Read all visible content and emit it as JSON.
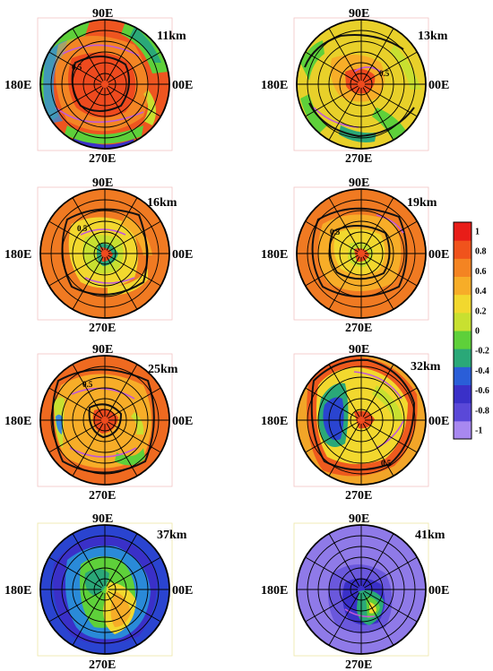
{
  "figure": {
    "panels": [
      {
        "altitude": "11km",
        "top": "90E",
        "bottom": "270E",
        "left": "180E",
        "right": "00E",
        "contour_label": "0.5",
        "background": "#ee5520",
        "frame": "pink"
      },
      {
        "altitude": "13km",
        "top": "90E",
        "bottom": "270E",
        "left": "180E",
        "right": "00E",
        "contour_label": "0.5",
        "background": "#e8d02a",
        "frame": "pink"
      },
      {
        "altitude": "16km",
        "top": "90E",
        "bottom": "270E",
        "left": "180E",
        "right": "00E",
        "contour_label": "0.5",
        "background": "#f07a22",
        "frame": "pink"
      },
      {
        "altitude": "19km",
        "top": "90E",
        "bottom": "270E",
        "left": "180E",
        "right": "00E",
        "contour_label": "0.5",
        "background": "#f07a22",
        "frame": "pink"
      },
      {
        "altitude": "25km",
        "top": "90E",
        "bottom": "270E",
        "left": "180E",
        "right": "00E",
        "contour_label": "0.5",
        "background": "#ef6a20",
        "frame": "pink"
      },
      {
        "altitude": "32km",
        "top": "90E",
        "bottom": "270E",
        "left": "180E",
        "right": "00E",
        "contour_label": "0.5",
        "background": "#f2a528",
        "frame": "pink"
      },
      {
        "altitude": "37km",
        "top": "90E",
        "bottom": "270E",
        "left": "180E",
        "right": "00E",
        "contour_label": "",
        "background": "#2a44d0",
        "frame": "yellow"
      },
      {
        "altitude": "41km",
        "top": "90E",
        "bottom": "270E",
        "left": "180E",
        "right": "00E",
        "contour_label": "",
        "background": "#8f7ae8",
        "frame": "yellow"
      }
    ],
    "colorbar": {
      "ticks": [
        "1",
        "0.8",
        "0.6",
        "0.4",
        "0.2",
        "0",
        "-0.2",
        "-0.4",
        "-0.6",
        "-0.8",
        "-1"
      ],
      "colors": [
        "#e81d18",
        "#f0531c",
        "#f48422",
        "#f7ad28",
        "#f2d82e",
        "#c8e030",
        "#5ed03a",
        "#2aa878",
        "#2a5ed8",
        "#3a30c8",
        "#5a48d8",
        "#a888f0"
      ]
    }
  }
}
